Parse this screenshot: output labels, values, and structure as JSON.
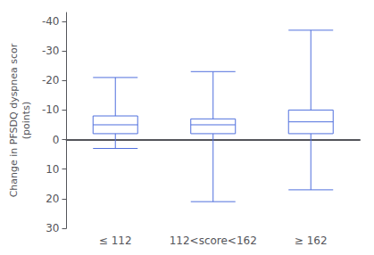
{
  "chart_data": {
    "type": "box",
    "categories": [
      "≤ 112",
      "112<score<162",
      "≥ 162"
    ],
    "values": [
      {
        "min": -21,
        "q1": -8,
        "median": -5,
        "q3": -2,
        "max": 3
      },
      {
        "min": -23,
        "q1": -7,
        "median": -5,
        "q3": -2,
        "max": 21
      },
      {
        "min": -37,
        "q1": -10,
        "median": -6,
        "q3": -2,
        "max": 17
      }
    ],
    "ylabel": "Change in PFSDQ dyspnea scor\n(points)",
    "ylim": [
      30,
      -43
    ],
    "yticks": [
      -40,
      -30,
      -20,
      -10,
      0,
      10,
      20,
      30
    ],
    "grid": false
  }
}
